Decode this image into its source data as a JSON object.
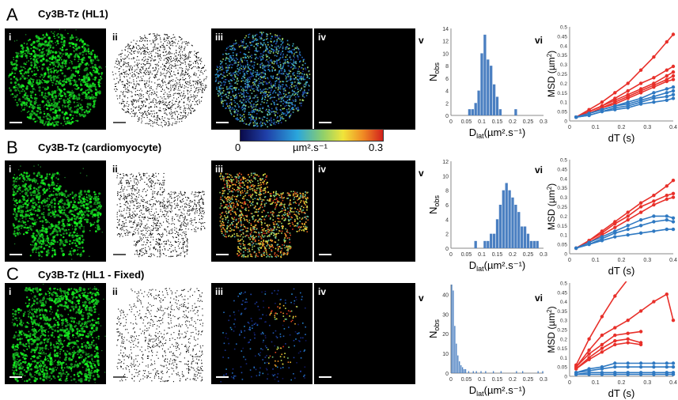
{
  "colorbar": {
    "min_label": "0",
    "unit_label": "µm².s⁻¹",
    "max_label": "0.3"
  },
  "rows": [
    {
      "letter": "A",
      "title": "Cy3B-Tz  (HL1)",
      "images": [
        "i",
        "ii",
        "iii",
        "iv"
      ],
      "hist_label": "v",
      "msd_label": "vi",
      "seed": 11,
      "cell": "round",
      "fixed": false
    },
    {
      "letter": "B",
      "title": "Cy3B-Tz  (cardiomyocyte)",
      "images": [
        "i",
        "ii",
        "iii",
        "iv"
      ],
      "hist_label": "v",
      "msd_label": "vi",
      "seed": 23,
      "cell": "irregular",
      "fixed": false
    },
    {
      "letter": "C",
      "title": "Cy3B-Tz  (HL1 - Fixed)",
      "images": [
        "i",
        "ii",
        "iii",
        "iv"
      ],
      "hist_label": "v",
      "msd_label": "vi",
      "seed": 37,
      "cell": "large",
      "fixed": true
    }
  ],
  "chart_data": [
    {
      "type": "bar",
      "panel": "A v",
      "xlabel": "Dlat(µm².s⁻¹)",
      "ylabel": "Nobs",
      "xlim": [
        0,
        0.3
      ],
      "ylim": [
        0,
        14
      ],
      "xticks": [
        "0",
        "0.05",
        "0.1",
        "0.15",
        "0.2",
        "0.25",
        "0.3"
      ],
      "yticks": [
        "0",
        "2",
        "4",
        "6",
        "8",
        "10",
        "12",
        "14"
      ],
      "bin_width": 0.01,
      "bins": [
        {
          "x": 0.06,
          "y": 1
        },
        {
          "x": 0.07,
          "y": 1
        },
        {
          "x": 0.08,
          "y": 2
        },
        {
          "x": 0.09,
          "y": 4
        },
        {
          "x": 0.1,
          "y": 10
        },
        {
          "x": 0.11,
          "y": 13
        },
        {
          "x": 0.12,
          "y": 9
        },
        {
          "x": 0.13,
          "y": 8
        },
        {
          "x": 0.14,
          "y": 5
        },
        {
          "x": 0.15,
          "y": 3
        },
        {
          "x": 0.16,
          "y": 1
        },
        {
          "x": 0.21,
          "y": 1
        }
      ]
    },
    {
      "type": "line",
      "panel": "A vi",
      "xlabel": "dT (s)",
      "ylabel": "MSD (µm²)",
      "xlim": [
        0,
        0.4
      ],
      "ylim": [
        0,
        0.5
      ],
      "xticks": [
        "0",
        "0.1",
        "0.2",
        "0.3",
        "0.4"
      ],
      "yticks": [
        "0",
        "0.05",
        "0.1",
        "0.15",
        "0.2",
        "0.25",
        "0.3",
        "0.35",
        "0.4",
        "0.45",
        "0.5"
      ],
      "x": [
        0.025,
        0.075,
        0.125,
        0.175,
        0.225,
        0.275,
        0.325,
        0.375,
        0.4
      ],
      "series": [
        {
          "color": "#e8302a",
          "values": [
            0.02,
            0.06,
            0.1,
            0.15,
            0.2,
            0.27,
            0.34,
            0.42,
            0.46
          ]
        },
        {
          "color": "#e8302a",
          "values": [
            0.02,
            0.05,
            0.08,
            0.12,
            0.16,
            0.2,
            0.23,
            0.27,
            0.29
          ]
        },
        {
          "color": "#e8302a",
          "values": [
            0.02,
            0.05,
            0.08,
            0.11,
            0.14,
            0.17,
            0.2,
            0.24,
            0.26
          ]
        },
        {
          "color": "#e8302a",
          "values": [
            0.02,
            0.04,
            0.07,
            0.1,
            0.13,
            0.16,
            0.19,
            0.22,
            0.24
          ]
        },
        {
          "color": "#e8302a",
          "values": [
            0.02,
            0.04,
            0.07,
            0.09,
            0.12,
            0.15,
            0.18,
            0.21,
            0.22
          ]
        },
        {
          "color": "#2f79c2",
          "values": [
            0.02,
            0.04,
            0.06,
            0.08,
            0.1,
            0.12,
            0.15,
            0.17,
            0.18
          ]
        },
        {
          "color": "#2f79c2",
          "values": [
            0.02,
            0.04,
            0.06,
            0.08,
            0.09,
            0.11,
            0.13,
            0.15,
            0.16
          ]
        },
        {
          "color": "#2f79c2",
          "values": [
            0.02,
            0.03,
            0.05,
            0.07,
            0.08,
            0.1,
            0.12,
            0.13,
            0.14
          ]
        },
        {
          "color": "#2f79c2",
          "values": [
            0.02,
            0.03,
            0.05,
            0.06,
            0.07,
            0.09,
            0.1,
            0.11,
            0.12
          ]
        }
      ]
    },
    {
      "type": "bar",
      "panel": "B v",
      "xlabel": "Dlat(µm².s⁻¹)",
      "ylabel": "Nobs",
      "xlim": [
        0,
        0.3
      ],
      "ylim": [
        0,
        12
      ],
      "xticks": [
        "0",
        "0.05",
        "0.1",
        "0.15",
        "0.2",
        "0.25",
        "0.3"
      ],
      "yticks": [
        "0",
        "2",
        "4",
        "6",
        "8",
        "10",
        "12"
      ],
      "bin_width": 0.01,
      "bins": [
        {
          "x": 0.08,
          "y": 1
        },
        {
          "x": 0.11,
          "y": 1
        },
        {
          "x": 0.12,
          "y": 1
        },
        {
          "x": 0.13,
          "y": 2
        },
        {
          "x": 0.14,
          "y": 2
        },
        {
          "x": 0.15,
          "y": 4
        },
        {
          "x": 0.16,
          "y": 6
        },
        {
          "x": 0.17,
          "y": 8
        },
        {
          "x": 0.18,
          "y": 9
        },
        {
          "x": 0.19,
          "y": 8
        },
        {
          "x": 0.2,
          "y": 7
        },
        {
          "x": 0.21,
          "y": 6
        },
        {
          "x": 0.22,
          "y": 5
        },
        {
          "x": 0.23,
          "y": 3
        },
        {
          "x": 0.24,
          "y": 3
        },
        {
          "x": 0.25,
          "y": 2
        },
        {
          "x": 0.26,
          "y": 1
        },
        {
          "x": 0.27,
          "y": 1
        },
        {
          "x": 0.28,
          "y": 1
        }
      ]
    },
    {
      "type": "line",
      "panel": "B vi",
      "xlabel": "dT (s)",
      "ylabel": "MSD (µm²)",
      "xlim": [
        0,
        0.4
      ],
      "ylim": [
        0,
        0.5
      ],
      "xticks": [
        "0",
        "0.1",
        "0.2",
        "0.3",
        "0.4"
      ],
      "yticks": [
        "0",
        "0.05",
        "0.1",
        "0.15",
        "0.2",
        "0.25",
        "0.3",
        "0.35",
        "0.4",
        "0.45",
        "0.5"
      ],
      "x": [
        0.025,
        0.075,
        0.125,
        0.175,
        0.225,
        0.275,
        0.325,
        0.375,
        0.4
      ],
      "series": [
        {
          "color": "#e8302a",
          "values": [
            0.03,
            0.07,
            0.12,
            0.17,
            0.22,
            0.27,
            0.31,
            0.36,
            0.39
          ]
        },
        {
          "color": "#e8302a",
          "values": [
            0.03,
            0.07,
            0.11,
            0.16,
            0.2,
            0.25,
            0.28,
            0.31,
            0.32
          ]
        },
        {
          "color": "#e8302a",
          "values": [
            0.03,
            0.06,
            0.1,
            0.14,
            0.18,
            0.22,
            0.26,
            0.29,
            0.3
          ]
        },
        {
          "color": "#2f79c2",
          "values": [
            0.03,
            0.06,
            0.09,
            0.12,
            0.15,
            0.18,
            0.2,
            0.2,
            0.19
          ]
        },
        {
          "color": "#2f79c2",
          "values": [
            0.03,
            0.05,
            0.08,
            0.11,
            0.13,
            0.15,
            0.17,
            0.18,
            0.17
          ]
        },
        {
          "color": "#2f79c2",
          "values": [
            0.03,
            0.05,
            0.07,
            0.09,
            0.1,
            0.11,
            0.12,
            0.13,
            0.13
          ]
        }
      ]
    },
    {
      "type": "bar",
      "panel": "C v",
      "xlabel": "Dlat(µm².s⁻¹)",
      "ylabel": "Nobs",
      "xlim": [
        0,
        0.3
      ],
      "ylim": [
        0,
        45
      ],
      "xticks": [
        "0",
        "0.05",
        "0.1",
        "0.15",
        "0.2",
        "0.25",
        "0.3"
      ],
      "yticks": [
        "0",
        "10",
        "20",
        "30",
        "40"
      ],
      "bin_width": 0.005,
      "bins": [
        {
          "x": 0.0025,
          "y": 45
        },
        {
          "x": 0.0075,
          "y": 42
        },
        {
          "x": 0.0125,
          "y": 24
        },
        {
          "x": 0.0175,
          "y": 15
        },
        {
          "x": 0.0225,
          "y": 9
        },
        {
          "x": 0.0275,
          "y": 6
        },
        {
          "x": 0.0325,
          "y": 4
        },
        {
          "x": 0.0375,
          "y": 3
        },
        {
          "x": 0.0425,
          "y": 2
        },
        {
          "x": 0.0475,
          "y": 2
        },
        {
          "x": 0.0575,
          "y": 1
        },
        {
          "x": 0.0725,
          "y": 1
        },
        {
          "x": 0.0825,
          "y": 1
        },
        {
          "x": 0.0975,
          "y": 1
        },
        {
          "x": 0.1125,
          "y": 1
        },
        {
          "x": 0.1375,
          "y": 1
        },
        {
          "x": 0.1625,
          "y": 1
        },
        {
          "x": 0.2125,
          "y": 1
        },
        {
          "x": 0.2325,
          "y": 1
        },
        {
          "x": 0.2825,
          "y": 1
        },
        {
          "x": 0.2975,
          "y": 1
        }
      ]
    },
    {
      "type": "line",
      "panel": "C vi",
      "xlabel": "dT (s)",
      "ylabel": "MSD (µm²)",
      "xlim": [
        0,
        0.4
      ],
      "ylim": [
        0,
        0.5
      ],
      "xticks": [
        "0",
        "0.1",
        "0.2",
        "0.3",
        "0.4"
      ],
      "yticks": [
        "0",
        "0.05",
        "0.1",
        "0.15",
        "0.2",
        "0.25",
        "0.3",
        "0.35",
        "0.4",
        "0.45",
        "0.5"
      ],
      "x": [
        0.025,
        0.075,
        0.125,
        0.175,
        0.225,
        0.275,
        0.325,
        0.375,
        0.4
      ],
      "series": [
        {
          "color": "#e8302a",
          "values": [
            0.06,
            0.2,
            0.32,
            0.43,
            0.52,
            null,
            null,
            null,
            null
          ]
        },
        {
          "color": "#e8302a",
          "values": [
            0.05,
            0.14,
            0.22,
            0.26,
            0.3,
            0.35,
            0.4,
            0.44,
            0.3
          ]
        },
        {
          "color": "#e8302a",
          "values": [
            0.05,
            0.12,
            0.17,
            0.22,
            0.23,
            0.24,
            null,
            null,
            null
          ]
        },
        {
          "color": "#e8302a",
          "values": [
            0.04,
            0.1,
            0.15,
            0.19,
            0.2,
            0.18,
            null,
            null,
            null
          ]
        },
        {
          "color": "#e8302a",
          "values": [
            0.04,
            0.09,
            0.13,
            0.17,
            0.18,
            0.17,
            null,
            null,
            null
          ]
        },
        {
          "color": "#2f79c2",
          "values": [
            0.02,
            0.04,
            0.05,
            0.07,
            0.07,
            0.07,
            0.07,
            0.07,
            0.07
          ]
        },
        {
          "color": "#2f79c2",
          "values": [
            0.02,
            0.03,
            0.04,
            0.05,
            0.05,
            0.05,
            0.05,
            0.05,
            0.05
          ]
        },
        {
          "color": "#2f79c2",
          "values": [
            0.01,
            0.02,
            0.02,
            0.02,
            0.02,
            0.02,
            0.02,
            0.02,
            0.02
          ]
        },
        {
          "color": "#2f79c2",
          "values": [
            0.01,
            0.01,
            0.01,
            0.01,
            0.01,
            0.01,
            0.01,
            0.01,
            0.01
          ]
        }
      ]
    }
  ]
}
